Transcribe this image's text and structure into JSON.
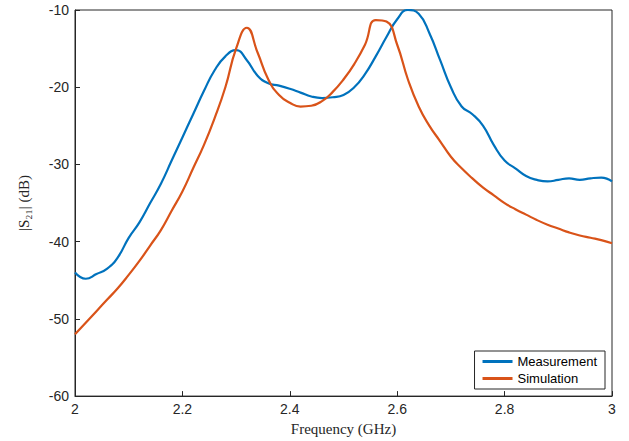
{
  "chart_data": {
    "type": "line",
    "xlabel": "Frequency (GHz)",
    "ylabel": "|S₂₁| (dB)",
    "x": [
      2.0,
      2.02,
      2.04,
      2.06,
      2.08,
      2.1,
      2.12,
      2.14,
      2.16,
      2.18,
      2.2,
      2.22,
      2.24,
      2.26,
      2.28,
      2.3,
      2.32,
      2.34,
      2.36,
      2.38,
      2.4,
      2.42,
      2.44,
      2.46,
      2.48,
      2.5,
      2.52,
      2.54,
      2.56,
      2.58,
      2.6,
      2.62,
      2.64,
      2.66,
      2.68,
      2.7,
      2.72,
      2.74,
      2.76,
      2.78,
      2.8,
      2.82,
      2.84,
      2.86,
      2.88,
      2.9,
      2.92,
      2.94,
      2.96,
      2.98,
      3.0
    ],
    "series": [
      {
        "name": "Measurement",
        "color": "#0072bd",
        "values": [
          -44,
          -44.8,
          -44.2,
          -43.5,
          -42,
          -39.5,
          -37.5,
          -35,
          -32.5,
          -29.5,
          -26.5,
          -23.5,
          -20.5,
          -17.8,
          -16,
          -15.2,
          -16.5,
          -18.5,
          -19.5,
          -19.8,
          -20.2,
          -20.7,
          -21.2,
          -21.4,
          -21.3,
          -21,
          -20,
          -18.3,
          -16,
          -13.5,
          -11.2,
          -10,
          -10.5,
          -13,
          -16.5,
          -20,
          -22.5,
          -23.5,
          -25,
          -27.5,
          -29.5,
          -30.5,
          -31.5,
          -32,
          -32.2,
          -32,
          -31.8,
          -32,
          -31.8,
          -31.7,
          -32.2
        ]
      },
      {
        "name": "Simulation",
        "color": "#d95319",
        "values": [
          -52,
          -50.5,
          -49,
          -47.5,
          -46,
          -44.3,
          -42.5,
          -40.5,
          -38.5,
          -36,
          -33.5,
          -30.5,
          -27.5,
          -24,
          -20,
          -15,
          -12.3,
          -15.5,
          -19,
          -21,
          -22,
          -22.5,
          -22.4,
          -21.8,
          -20.6,
          -19,
          -17,
          -14.5,
          -11.3,
          -11.5,
          -14.5,
          -19,
          -22.5,
          -25,
          -27,
          -29,
          -30.5,
          -31.8,
          -33,
          -34,
          -35,
          -35.8,
          -36.5,
          -37.2,
          -37.8,
          -38.3,
          -38.8,
          -39.2,
          -39.5,
          -39.8,
          -40.2
        ]
      }
    ],
    "xlim": [
      2,
      3
    ],
    "ylim": [
      -60,
      -10
    ],
    "xticks": [
      2,
      2.2,
      2.4,
      2.6,
      2.8,
      3
    ],
    "yticks": [
      -60,
      -50,
      -40,
      -30,
      -20,
      -10
    ],
    "grid": false,
    "legend": "lower right"
  }
}
